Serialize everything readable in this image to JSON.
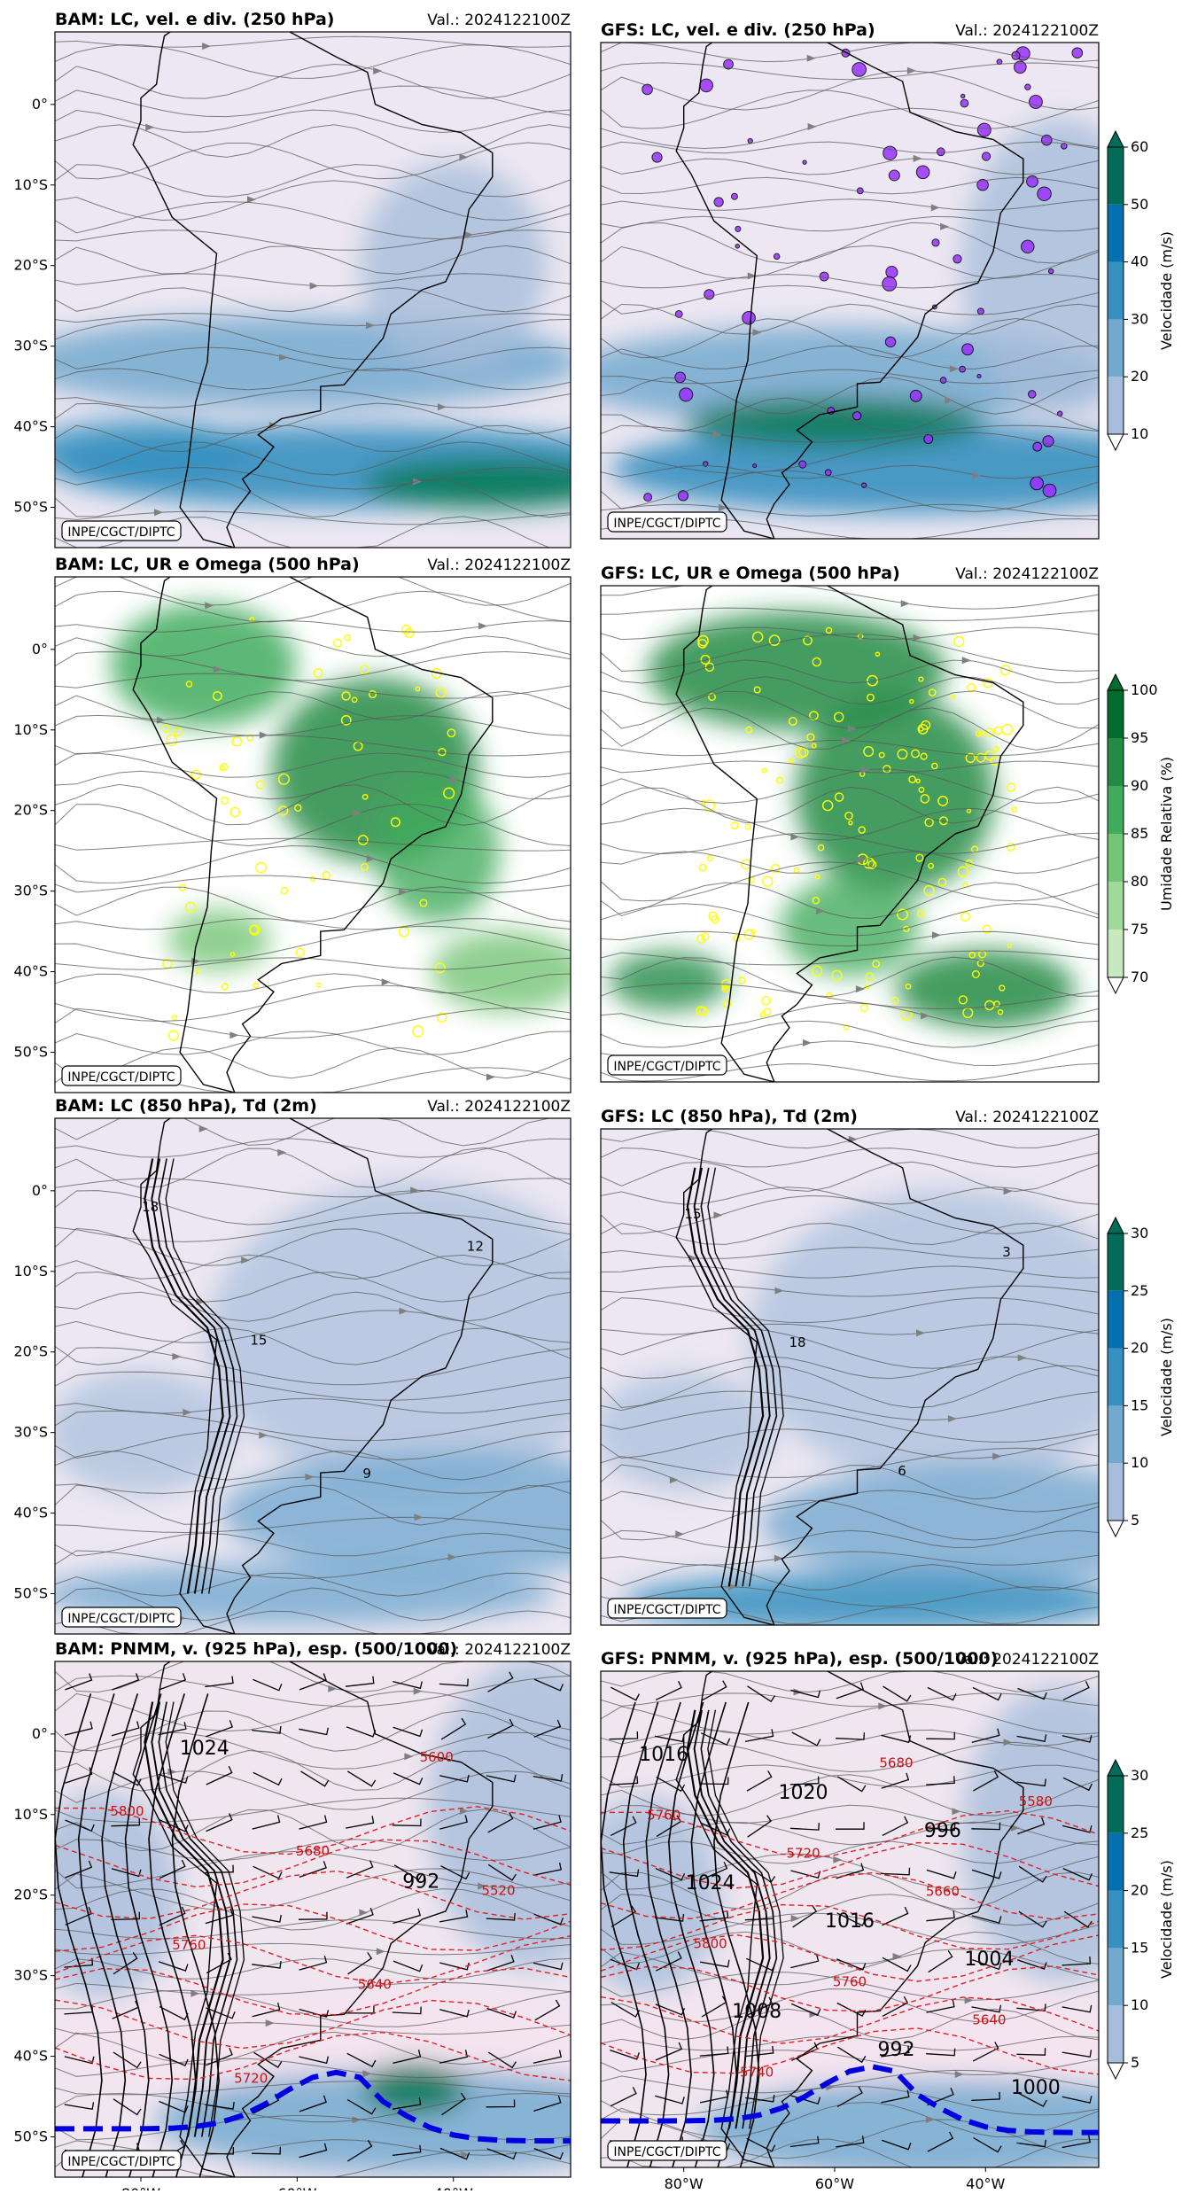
{
  "credit": "INPE/CGCT/DIPTC",
  "chart_data": [
    {
      "type": "heatmap",
      "model": "BAM",
      "title": "BAM: LC, vel. e div. (250 hPa)",
      "valid": "Val.: 2024122100Z",
      "variable": "wind_speed",
      "colorbar": {
        "label": "Velocidade (m/s)",
        "levels": [
          10,
          20,
          30,
          40,
          50,
          60
        ],
        "colors": [
          "#ece7f2",
          "#a6bddb",
          "#74a9cf",
          "#3690c0",
          "#0570b0",
          "#016c59"
        ]
      }
    },
    {
      "type": "heatmap",
      "model": "GFS",
      "title": "GFS: LC, vel. e div. (250 hPa)",
      "valid": "Val.: 2024122100Z",
      "variable": "wind_speed",
      "colorbar": {
        "label": "Velocidade (m/s)",
        "levels": [
          10,
          20,
          30,
          40,
          50,
          60
        ],
        "colors": [
          "#ece7f2",
          "#a6bddb",
          "#74a9cf",
          "#3690c0",
          "#0570b0",
          "#016c59"
        ]
      }
    },
    {
      "type": "heatmap",
      "model": "BAM",
      "title": "BAM: LC, UR e Omega (500 hPa)",
      "valid": "Val.: 2024122100Z",
      "variable": "relative_humidity",
      "colorbar": {
        "label": "Umidade Relativa (%)",
        "levels": [
          70,
          75,
          80,
          85,
          90,
          95,
          100
        ],
        "colors": [
          "#ffffff",
          "#c7e9c0",
          "#a1d99b",
          "#74c476",
          "#41ab5d",
          "#238b45",
          "#006d2c"
        ]
      }
    },
    {
      "type": "heatmap",
      "model": "GFS",
      "title": "GFS: LC, UR e Omega (500 hPa)",
      "valid": "Val.: 2024122100Z",
      "variable": "relative_humidity",
      "colorbar": {
        "label": "Umidade Relativa (%)",
        "levels": [
          70,
          75,
          80,
          85,
          90,
          95,
          100
        ],
        "colors": [
          "#ffffff",
          "#c7e9c0",
          "#a1d99b",
          "#74c476",
          "#41ab5d",
          "#238b45",
          "#006d2c"
        ]
      }
    },
    {
      "type": "heatmap",
      "model": "BAM",
      "title": "BAM: LC (850 hPa), Td (2m)",
      "valid": "Val.: 2024122100Z",
      "variable": "wind_speed",
      "contour_labels": [
        "18",
        "15",
        "9",
        "12"
      ],
      "colorbar": {
        "label": "Velocidade (m/s)",
        "levels": [
          5,
          10,
          15,
          20,
          25,
          30
        ],
        "colors": [
          "#ece7f2",
          "#a6bddb",
          "#74a9cf",
          "#3690c0",
          "#0570b0",
          "#016c59"
        ]
      }
    },
    {
      "type": "heatmap",
      "model": "GFS",
      "title": "GFS: LC (850 hPa), Td (2m)",
      "valid": "Val.: 2024122100Z",
      "variable": "wind_speed",
      "contour_labels": [
        "15",
        "18",
        "6",
        "3"
      ],
      "colorbar": {
        "label": "Velocidade (m/s)",
        "levels": [
          5,
          10,
          15,
          20,
          25,
          30
        ],
        "colors": [
          "#ece7f2",
          "#a6bddb",
          "#74a9cf",
          "#3690c0",
          "#0570b0",
          "#016c59"
        ]
      }
    },
    {
      "type": "heatmap",
      "model": "BAM",
      "title": "BAM: PNMM, v. (925 hPa), esp. (500/1000)",
      "valid": "Val.: 2024122100Z",
      "variable": "wind_speed",
      "isobar_labels": [
        "1024",
        "992"
      ],
      "thickness_labels": [
        "5800",
        "5760",
        "5720",
        "5680",
        "5640",
        "5600",
        "5520"
      ],
      "colorbar": {
        "label": "Velocidade (m/s)",
        "levels": [
          5,
          10,
          15,
          20,
          25,
          30
        ],
        "colors": [
          "#ece7f2",
          "#a6bddb",
          "#74a9cf",
          "#3690c0",
          "#0570b0",
          "#016c59"
        ]
      }
    },
    {
      "type": "heatmap",
      "model": "GFS",
      "title": "GFS: PNMM, v. (925 hPa), esp. (500/1000)",
      "valid": "Val.: 2024122100Z",
      "variable": "wind_speed",
      "isobar_labels": [
        "1016",
        "1024",
        "1008",
        "1020",
        "1016",
        "992",
        "996",
        "1004",
        "1000"
      ],
      "thickness_labels": [
        "5760",
        "5800",
        "5740",
        "5720",
        "5760",
        "5680",
        "5660",
        "5640",
        "5580"
      ],
      "colorbar": {
        "label": "Velocidade (m/s)",
        "levels": [
          5,
          10,
          15,
          20,
          25,
          30
        ],
        "colors": [
          "#ece7f2",
          "#a6bddb",
          "#74a9cf",
          "#3690c0",
          "#0570b0",
          "#016c59"
        ]
      }
    }
  ],
  "axes": {
    "lat_ticks": [
      "0°",
      "10°S",
      "20°S",
      "30°S",
      "40°S",
      "50°S"
    ],
    "lon_ticks": [
      "80°W",
      "60°W",
      "40°W"
    ]
  }
}
